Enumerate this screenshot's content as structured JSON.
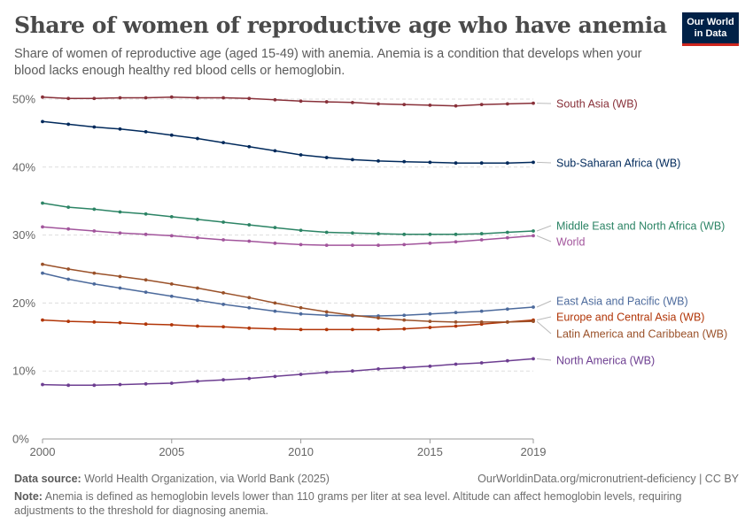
{
  "header": {
    "title": "Share of women of reproductive age who have anemia",
    "subtitle": "Share of women of reproductive age (aged 15-49) with anemia. Anemia is a condition that develops when your blood lacks enough healthy red blood cells or hemoglobin.",
    "logo_line1": "Our World",
    "logo_line2": "in Data"
  },
  "footer": {
    "source_label": "Data source:",
    "source_text": "World Health Organization, via World Bank (2025)",
    "link_text": "OurWorldinData.org/micronutrient-deficiency",
    "license_text": "CC BY",
    "note_label": "Note:",
    "note_text": "Anemia is defined as hemoglobin levels lower than 110 grams per liter at sea level. Altitude can affect hemoglobin levels, requiring adjustments to the threshold for diagnosing anemia."
  },
  "chart_data": {
    "type": "line",
    "x": [
      2000,
      2001,
      2002,
      2003,
      2004,
      2005,
      2006,
      2007,
      2008,
      2009,
      2010,
      2011,
      2012,
      2013,
      2014,
      2015,
      2016,
      2017,
      2018,
      2019
    ],
    "xticks": [
      2000,
      2005,
      2010,
      2015,
      2019
    ],
    "xtick_labels": [
      "2000",
      "2005",
      "2010",
      "2015",
      "2019"
    ],
    "yticks": [
      0,
      10,
      20,
      30,
      40,
      50
    ],
    "ytick_labels": [
      "0%",
      "10%",
      "20%",
      "30%",
      "40%",
      "50%"
    ],
    "ylim": [
      0,
      50
    ],
    "xlim": [
      2000,
      2019
    ],
    "grid": "horizontal dashed",
    "legend": "labels at right end of lines",
    "series": [
      {
        "name": "South Asia (WB)",
        "color": "#883039",
        "values": [
          50.3,
          50.1,
          50.1,
          50.2,
          50.2,
          50.3,
          50.2,
          50.2,
          50.1,
          49.9,
          49.7,
          49.6,
          49.5,
          49.3,
          49.2,
          49.1,
          49.0,
          49.2,
          49.3,
          49.4
        ]
      },
      {
        "name": "Sub-Saharan Africa (WB)",
        "color": "#00295b",
        "values": [
          46.7,
          46.3,
          45.9,
          45.6,
          45.2,
          44.7,
          44.2,
          43.6,
          43.0,
          42.4,
          41.8,
          41.4,
          41.1,
          40.9,
          40.8,
          40.7,
          40.6,
          40.6,
          40.6,
          40.7
        ]
      },
      {
        "name": "Middle East and North Africa (WB)",
        "color": "#2c8465",
        "values": [
          34.7,
          34.1,
          33.8,
          33.4,
          33.1,
          32.7,
          32.3,
          31.9,
          31.5,
          31.1,
          30.7,
          30.4,
          30.3,
          30.2,
          30.1,
          30.1,
          30.1,
          30.2,
          30.4,
          30.6
        ]
      },
      {
        "name": "World",
        "color": "#a2559c",
        "values": [
          31.2,
          30.9,
          30.6,
          30.3,
          30.1,
          29.9,
          29.6,
          29.3,
          29.1,
          28.8,
          28.6,
          28.5,
          28.5,
          28.5,
          28.6,
          28.8,
          29.0,
          29.3,
          29.6,
          29.9
        ]
      },
      {
        "name": "East Asia and Pacific (WB)",
        "color": "#4c6a9c",
        "values": [
          24.4,
          23.5,
          22.8,
          22.2,
          21.6,
          21.0,
          20.4,
          19.8,
          19.3,
          18.8,
          18.4,
          18.2,
          18.1,
          18.1,
          18.2,
          18.4,
          18.6,
          18.8,
          19.1,
          19.4
        ]
      },
      {
        "name": "Europe and Central Asia (WB)",
        "color": "#b13507",
        "values": [
          17.5,
          17.3,
          17.2,
          17.1,
          16.9,
          16.8,
          16.6,
          16.5,
          16.3,
          16.2,
          16.1,
          16.1,
          16.1,
          16.1,
          16.2,
          16.4,
          16.6,
          16.9,
          17.2,
          17.5
        ]
      },
      {
        "name": "Latin America and Caribbean (WB)",
        "color": "#9a5129",
        "values": [
          25.7,
          25.0,
          24.4,
          23.9,
          23.4,
          22.8,
          22.2,
          21.5,
          20.8,
          20.0,
          19.3,
          18.7,
          18.2,
          17.8,
          17.5,
          17.3,
          17.2,
          17.2,
          17.2,
          17.3
        ]
      },
      {
        "name": "North America (WB)",
        "color": "#6d3e91",
        "values": [
          8.0,
          7.9,
          7.9,
          8.0,
          8.1,
          8.2,
          8.5,
          8.7,
          8.9,
          9.2,
          9.5,
          9.8,
          10.0,
          10.3,
          10.5,
          10.7,
          11.0,
          11.2,
          11.5,
          11.8
        ]
      }
    ]
  }
}
